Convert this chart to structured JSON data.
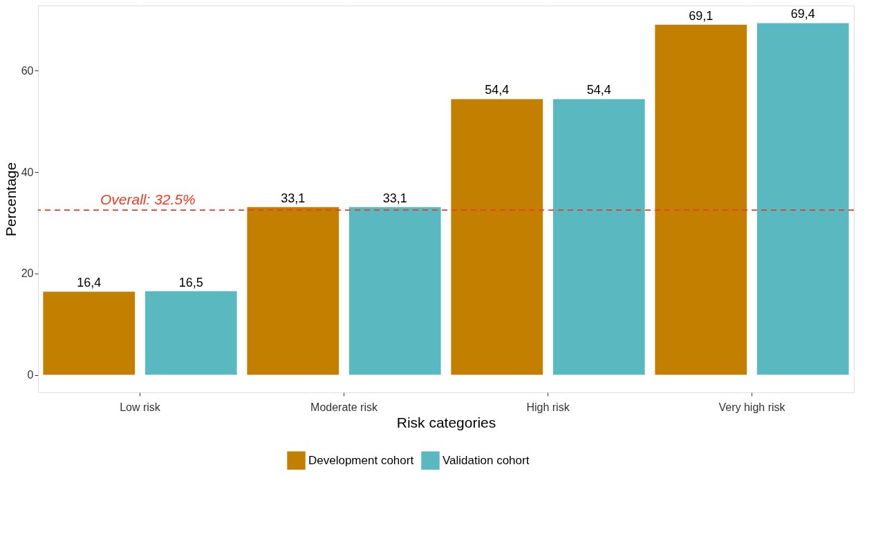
{
  "chart_data": {
    "type": "bar",
    "xlabel": "Risk categories",
    "ylabel": "Percentage",
    "categories": [
      "Low risk",
      "Moderate risk",
      "High risk",
      "Very high risk"
    ],
    "series": [
      {
        "name": "Development cohort",
        "color": "#c38000",
        "values": [
          16.4,
          33.1,
          54.4,
          69.1
        ],
        "value_labels": [
          "16,4",
          "33,1",
          "54,4",
          "69,1"
        ]
      },
      {
        "name": "Validation cohort",
        "color": "#5ab8c1",
        "values": [
          16.5,
          33.1,
          54.4,
          69.4
        ],
        "value_labels": [
          "16,5",
          "33,1",
          "54,4",
          "69,4"
        ]
      }
    ],
    "ylim": [
      -3.47,
      72.87
    ],
    "yticks": [
      0,
      20,
      40,
      60
    ],
    "grid": true,
    "legend": "bottom",
    "ref_lines": [
      {
        "axis": "y",
        "value": 32.5,
        "label": "Overall: 32.5%",
        "color": "#f03a1e",
        "line_style": "dashed"
      }
    ]
  }
}
